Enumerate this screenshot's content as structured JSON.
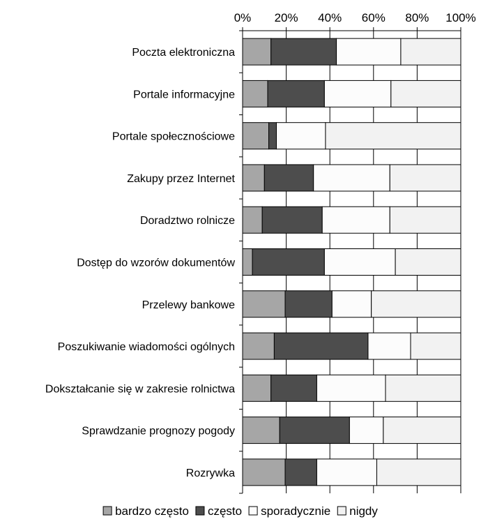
{
  "chart_data": {
    "type": "bar",
    "orientation": "horizontal",
    "stacked": true,
    "percent_stacked": true,
    "title": "",
    "xlabel": "",
    "ylabel": "",
    "xlim": [
      0,
      100
    ],
    "x_ticks": [
      "0%",
      "20%",
      "40%",
      "60%",
      "80%",
      "100%"
    ],
    "x_axis_position": "top",
    "grid": true,
    "legend_position": "bottom",
    "categories": [
      "Poczta elektroniczna",
      "Portale informacyjne",
      "Portale społecznościowe",
      "Zakupy przez Internet",
      "Doradztwo rolnicze",
      "Dostęp do wzorów dokumentów",
      "Przelewy bankowe",
      "Poszukiwanie wiadomości ogólnych",
      "Dokształcanie się w zakresie rolnictwa",
      "Sprawdzanie prognozy pogody",
      "Rozrywka"
    ],
    "series": [
      {
        "name": "bardzo często",
        "color": "#a6a6a6",
        "values": [
          13,
          11.5,
          12,
          10,
          9,
          4.5,
          19.5,
          14.5,
          13,
          17,
          19.5
        ]
      },
      {
        "name": "często",
        "color": "#4d4d4d",
        "values": [
          30,
          26,
          3.5,
          22.5,
          27.5,
          33,
          21.5,
          43,
          21,
          32,
          14.5
        ]
      },
      {
        "name": "sporadycznie",
        "color": "#fcfcfc",
        "values": [
          29.5,
          30.5,
          22.5,
          35,
          31,
          32.5,
          18,
          19.5,
          31.5,
          15.5,
          27.5
        ]
      },
      {
        "name": "nigdy",
        "color": "#f2f2f2",
        "values": [
          27.5,
          32,
          62,
          32.5,
          32.5,
          30,
          41,
          23,
          34.5,
          35.5,
          38.5
        ]
      }
    ]
  }
}
